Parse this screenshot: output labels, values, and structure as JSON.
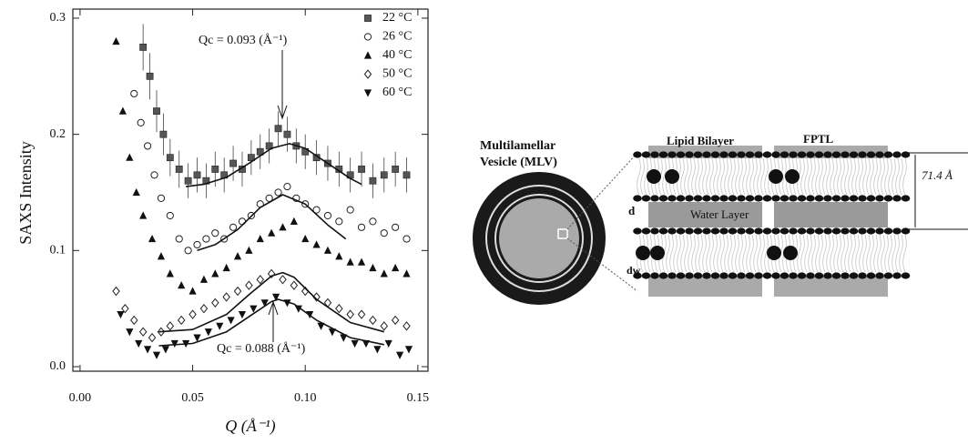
{
  "chart_data": {
    "type": "scatter",
    "xlabel": "Q (Å⁻¹)",
    "ylabel": "SAXS Intensity",
    "xlim": [
      -0.0032,
      0.1545
    ],
    "ylim": [
      -0.0039,
      0.3078
    ],
    "xticks": [
      {
        "value": 0,
        "label": "0.00"
      },
      {
        "value": 0.05,
        "label": "0.05"
      },
      {
        "value": 0.1,
        "label": "0.10"
      },
      {
        "value": 0.15,
        "label": "0.15"
      }
    ],
    "yticks": [
      {
        "value": 0,
        "label": "0.0"
      },
      0.1,
      0.2,
      0.3
    ],
    "legend": "upper right",
    "series": [
      {
        "name": "22 °C",
        "color": "#555555",
        "marker": "square",
        "x": [
          0.028,
          0.031,
          0.034,
          0.037,
          0.04,
          0.044,
          0.048,
          0.052,
          0.056,
          0.06,
          0.064,
          0.068,
          0.072,
          0.076,
          0.08,
          0.084,
          0.088,
          0.092,
          0.096,
          0.1,
          0.105,
          0.11,
          0.115,
          0.12,
          0.125,
          0.13,
          0.135,
          0.14,
          0.145
        ],
        "values": [
          0.275,
          0.25,
          0.22,
          0.2,
          0.18,
          0.17,
          0.16,
          0.165,
          0.16,
          0.17,
          0.165,
          0.175,
          0.17,
          0.18,
          0.185,
          0.19,
          0.205,
          0.2,
          0.19,
          0.185,
          0.18,
          0.175,
          0.17,
          0.165,
          0.17,
          0.16,
          0.165,
          0.17,
          0.165
        ],
        "errors": [
          0.02,
          0.02,
          0.018,
          0.018,
          0.016,
          0.016,
          0.015,
          0.015,
          0.015,
          0.015,
          0.015,
          0.015,
          0.015,
          0.015,
          0.015,
          0.015,
          0.015,
          0.015,
          0.015,
          0.015,
          0.015,
          0.015,
          0.015,
          0.015,
          0.015,
          0.015,
          0.015,
          0.015,
          0.015
        ]
      },
      {
        "name": "26 °C",
        "color": "#222222",
        "marker": "circle",
        "x": [
          0.024,
          0.027,
          0.03,
          0.033,
          0.036,
          0.04,
          0.044,
          0.048,
          0.052,
          0.056,
          0.06,
          0.064,
          0.068,
          0.072,
          0.076,
          0.08,
          0.084,
          0.088,
          0.092,
          0.096,
          0.1,
          0.105,
          0.11,
          0.115,
          0.12,
          0.125,
          0.13,
          0.135,
          0.14,
          0.145
        ],
        "values": [
          0.235,
          0.21,
          0.19,
          0.165,
          0.145,
          0.13,
          0.11,
          0.1,
          0.105,
          0.11,
          0.115,
          0.11,
          0.12,
          0.125,
          0.13,
          0.14,
          0.145,
          0.15,
          0.155,
          0.145,
          0.14,
          0.135,
          0.13,
          0.125,
          0.135,
          0.12,
          0.125,
          0.115,
          0.12,
          0.11
        ]
      },
      {
        "name": "40 °C",
        "color": "#111111",
        "marker": "triangle",
        "x": [
          0.016,
          0.019,
          0.022,
          0.025,
          0.028,
          0.032,
          0.036,
          0.04,
          0.045,
          0.05,
          0.055,
          0.06,
          0.065,
          0.07,
          0.075,
          0.08,
          0.085,
          0.09,
          0.095,
          0.1,
          0.105,
          0.11,
          0.115,
          0.12,
          0.125,
          0.13,
          0.135,
          0.14,
          0.145
        ],
        "values": [
          0.28,
          0.22,
          0.18,
          0.15,
          0.13,
          0.11,
          0.095,
          0.08,
          0.07,
          0.065,
          0.075,
          0.08,
          0.085,
          0.095,
          0.1,
          0.11,
          0.115,
          0.12,
          0.125,
          0.11,
          0.105,
          0.1,
          0.095,
          0.09,
          0.09,
          0.085,
          0.08,
          0.085,
          0.08
        ]
      },
      {
        "name": "50 °C",
        "color": "#222222",
        "marker": "diamond",
        "x": [
          0.016,
          0.02,
          0.024,
          0.028,
          0.032,
          0.036,
          0.04,
          0.045,
          0.05,
          0.055,
          0.06,
          0.065,
          0.07,
          0.075,
          0.08,
          0.085,
          0.09,
          0.095,
          0.1,
          0.105,
          0.11,
          0.115,
          0.12,
          0.125,
          0.13,
          0.135,
          0.14,
          0.145
        ],
        "values": [
          0.065,
          0.05,
          0.04,
          0.03,
          0.025,
          0.03,
          0.035,
          0.04,
          0.045,
          0.05,
          0.055,
          0.06,
          0.065,
          0.07,
          0.075,
          0.08,
          0.075,
          0.07,
          0.065,
          0.06,
          0.055,
          0.05,
          0.045,
          0.045,
          0.04,
          0.035,
          0.04,
          0.035
        ]
      },
      {
        "name": "60 °C",
        "color": "#111111",
        "marker": "down-triangle",
        "x": [
          0.018,
          0.022,
          0.026,
          0.03,
          0.034,
          0.038,
          0.042,
          0.047,
          0.052,
          0.057,
          0.062,
          0.067,
          0.072,
          0.077,
          0.082,
          0.087,
          0.092,
          0.097,
          0.102,
          0.107,
          0.112,
          0.117,
          0.122,
          0.127,
          0.132,
          0.137,
          0.142,
          0.146
        ],
        "values": [
          0.045,
          0.03,
          0.02,
          0.015,
          0.01,
          0.015,
          0.02,
          0.02,
          0.025,
          0.03,
          0.035,
          0.04,
          0.045,
          0.05,
          0.055,
          0.06,
          0.055,
          0.05,
          0.045,
          0.035,
          0.03,
          0.025,
          0.02,
          0.02,
          0.015,
          0.02,
          0.01,
          0.015
        ]
      }
    ],
    "fits": [
      {
        "color": "#111111",
        "x": [
          0.047,
          0.055,
          0.065,
          0.075,
          0.085,
          0.093,
          0.1,
          0.11,
          0.12,
          0.125
        ],
        "values": [
          0.155,
          0.157,
          0.163,
          0.175,
          0.188,
          0.192,
          0.188,
          0.175,
          0.162,
          0.157
        ]
      },
      {
        "color": "#111111",
        "x": [
          0.052,
          0.06,
          0.07,
          0.08,
          0.09,
          0.1,
          0.11,
          0.118
        ],
        "values": [
          0.1,
          0.105,
          0.118,
          0.137,
          0.148,
          0.14,
          0.122,
          0.11
        ]
      },
      {
        "color": "#111111",
        "x": [
          0.035,
          0.05,
          0.065,
          0.075,
          0.085,
          0.09,
          0.095,
          0.105,
          0.12,
          0.135
        ],
        "values": [
          0.03,
          0.032,
          0.045,
          0.062,
          0.078,
          0.081,
          0.077,
          0.058,
          0.038,
          0.03
        ]
      },
      {
        "color": "#111111",
        "x": [
          0.035,
          0.05,
          0.065,
          0.075,
          0.085,
          0.088,
          0.095,
          0.105,
          0.12,
          0.135
        ],
        "values": [
          0.018,
          0.02,
          0.03,
          0.043,
          0.056,
          0.058,
          0.054,
          0.04,
          0.025,
          0.019
        ]
      }
    ],
    "annotations": [
      "Qc = 0.093 (Å⁻¹)",
      "Qc = 0.088 (Å⁻¹)"
    ]
  },
  "diagram": {
    "vesicle_label": [
      "Multilamellar",
      "Vesicle (MLV)"
    ],
    "bilayer_label": "Lipid Bilayer",
    "fptl_label": "FPTL",
    "spacing_label": "71.4  Å",
    "d_label": "d",
    "water_label": "Water Layer",
    "dw_label": "dw"
  }
}
